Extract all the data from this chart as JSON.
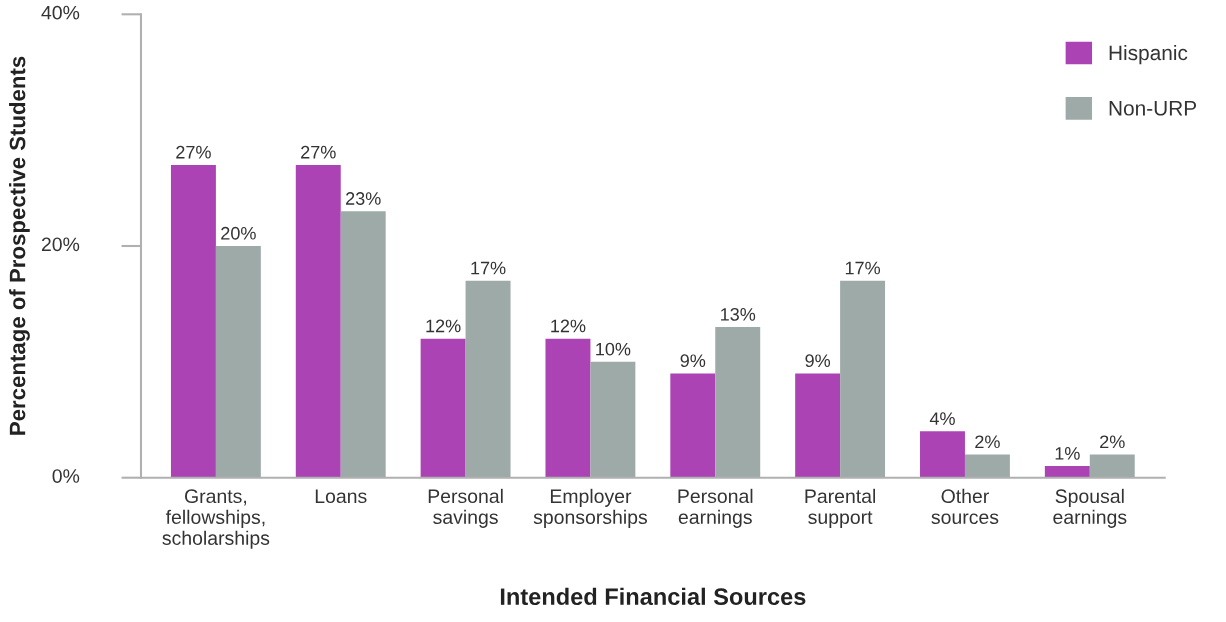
{
  "chart_data": {
    "type": "bar",
    "xlabel": "Intended Financial Sources",
    "ylabel": "Percentage of Prospective Students",
    "categories": [
      "Grants,\nfellowships,\nscholarships",
      "Loans",
      "Personal\nsavings",
      "Employer\nsponsorships",
      "Personal\nearnings",
      "Parental\nsupport",
      "Other\nsources",
      "Spousal\nearnings"
    ],
    "series": [
      {
        "name": "Hispanic",
        "color": "#ab43b5",
        "values": [
          27,
          27,
          12,
          12,
          9,
          9,
          4,
          1
        ],
        "value_labels": [
          "27%",
          "27%",
          "12%",
          "12%",
          "9%",
          "9%",
          "4%",
          "1%"
        ]
      },
      {
        "name": "Non-URP",
        "color": "#9eaaa8",
        "values": [
          20,
          23,
          17,
          10,
          13,
          17,
          2,
          2
        ],
        "value_labels": [
          "20%",
          "23%",
          "17%",
          "10%",
          "13%",
          "17%",
          "2%",
          "2%"
        ]
      }
    ],
    "ylim": [
      0,
      40
    ],
    "yticks": [
      {
        "value": 0,
        "label": "0%"
      },
      {
        "value": 20,
        "label": "20%"
      },
      {
        "value": 40,
        "label": "40%"
      }
    ],
    "legend": "top right",
    "grid": false
  }
}
